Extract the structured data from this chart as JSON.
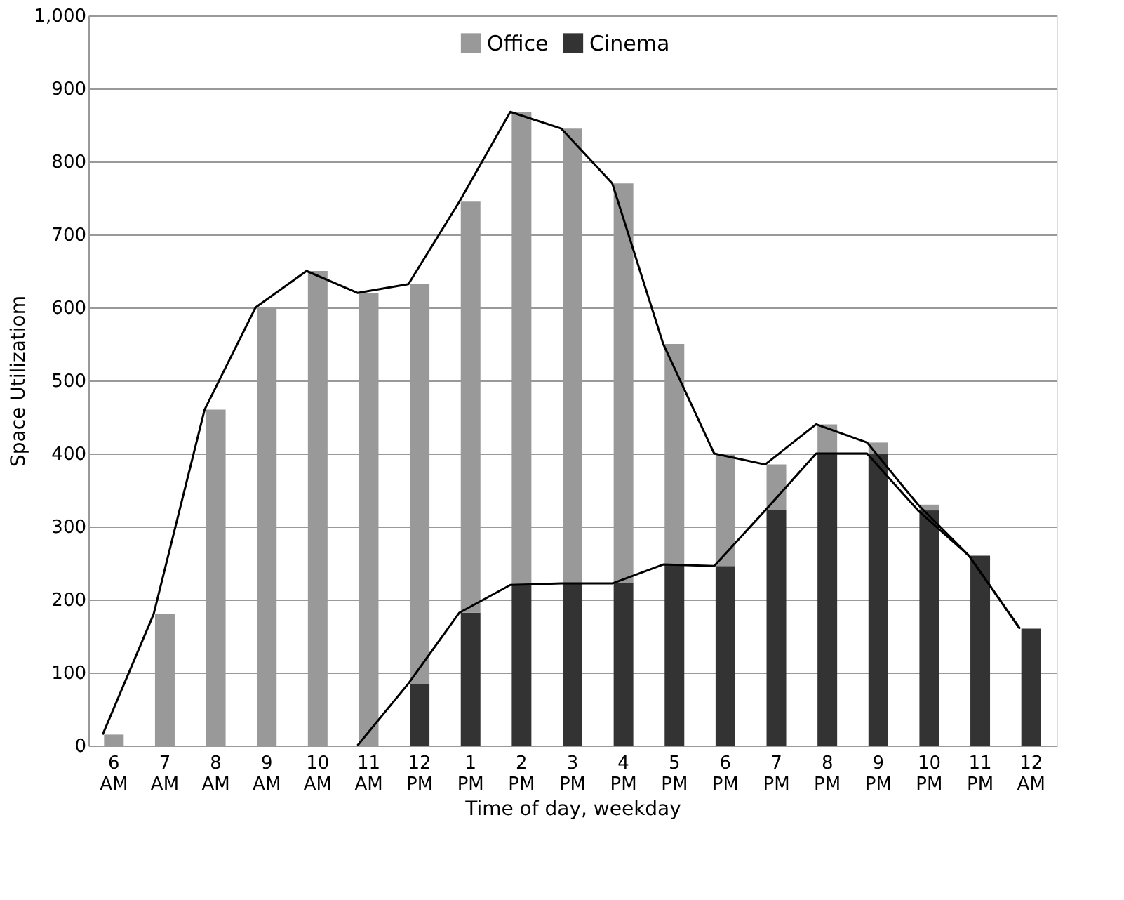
{
  "chart_data": {
    "type": "bar",
    "stacked": true,
    "xlabel": "Time of day, weekday",
    "ylabel": "Space Utilizatiom",
    "categories": [
      "6 AM",
      "7 AM",
      "8 AM",
      "9 AM",
      "10 AM",
      "11 AM",
      "12 PM",
      "1 PM",
      "2 PM",
      "3 PM",
      "4 PM",
      "5 PM",
      "6 PM",
      "7 PM",
      "8 PM",
      "9 PM",
      "10 PM",
      "11 PM",
      "12 AM"
    ],
    "series": [
      {
        "name": "Cinema",
        "color": "#333333",
        "values": [
          null,
          null,
          null,
          null,
          null,
          null,
          85,
          182,
          220,
          222,
          222,
          248,
          246,
          322,
          400,
          400,
          322,
          260,
          160
        ]
      },
      {
        "name": "Office",
        "color": "#999999",
        "values": [
          15,
          180,
          460,
          600,
          650,
          620,
          547,
          563,
          648,
          623,
          548,
          302,
          154,
          63,
          40,
          15,
          8,
          0,
          0
        ]
      },
      {
        "type": "line",
        "color": "#000000",
        "values": [
          15,
          180,
          460,
          600,
          650,
          620,
          632,
          745,
          868,
          845,
          770,
          550,
          400,
          385,
          440,
          415,
          330,
          260,
          160
        ]
      },
      {
        "type": "line",
        "color": "#000000",
        "values": [
          null,
          null,
          null,
          null,
          null,
          0,
          85,
          182,
          220,
          222,
          222,
          248,
          246,
          322,
          400,
          400,
          322,
          260,
          160
        ]
      }
    ],
    "ylim": [
      0,
      1000
    ],
    "yticks": [
      0,
      100,
      200,
      300,
      400,
      500,
      600,
      700,
      800,
      900,
      {
        "value": 1000,
        "label": "1,000"
      }
    ],
    "grid": "y",
    "legend": "top"
  }
}
